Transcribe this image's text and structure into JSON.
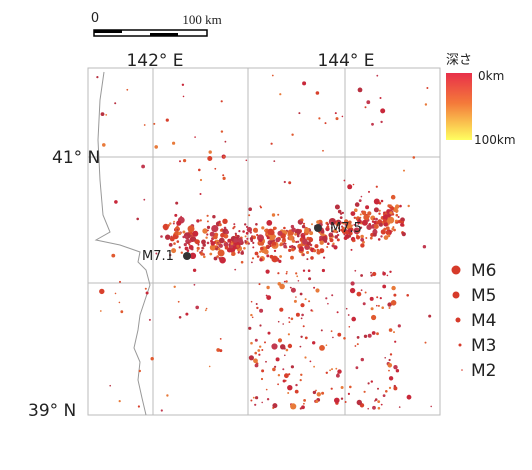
{
  "scale_bar": {
    "start": "0",
    "end": "100 km"
  },
  "longitudes": [
    "142° E",
    "144° E"
  ],
  "latitudes": [
    "41° N",
    "39° N"
  ],
  "depth_legend": {
    "title": "深さ",
    "top": "0km",
    "bottom": "100km"
  },
  "magnitude_legend": [
    "M6",
    "M5",
    "M4",
    "M3",
    "M2"
  ],
  "annotations": [
    "M7.5",
    "M7.1"
  ]
}
